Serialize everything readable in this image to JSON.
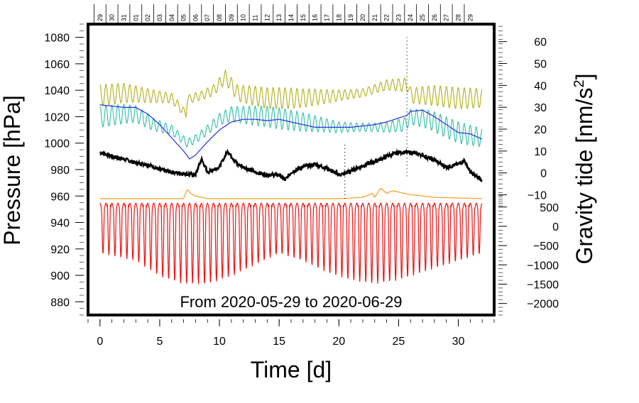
{
  "chart_data": {
    "type": "line",
    "annotation": "From 2020-05-29 to 2020-06-29",
    "xlabel": "Time [d]",
    "xlim": [
      -1,
      33
    ],
    "x_ticks": [
      "0",
      "5",
      "10",
      "15",
      "20",
      "25",
      "30"
    ],
    "left_axis": {
      "label": "Pressure [hPa]",
      "range": [
        870,
        1090
      ],
      "ticks": [
        "880",
        "900",
        "920",
        "940",
        "960",
        "980",
        "1000",
        "1020",
        "1040",
        "1060",
        "1080"
      ]
    },
    "right_axis_upper": {
      "label_main": "Gravity tide [nm/s",
      "label_sup": "2",
      "label_end": "]",
      "value_at_bottom": -15,
      "value_at_top": 68,
      "ticks": [
        "−10",
        "0",
        "10",
        "20",
        "30",
        "40",
        "50",
        "60"
      ]
    },
    "right_axis_lower": {
      "value_at_bottom": -2300,
      "value_at_top": 900,
      "ticks": [
        "−2000",
        "−1500",
        "−1000",
        "−500",
        "0",
        "500"
      ]
    },
    "top_day_labels": [
      "29",
      "30",
      "31",
      "01",
      "02",
      "03",
      "04",
      "05",
      "06",
      "07",
      "08",
      "09",
      "10",
      "11",
      "12",
      "13",
      "14",
      "15",
      "16",
      "17",
      "18",
      "19",
      "20",
      "21",
      "22",
      "23",
      "24",
      "25",
      "26",
      "27",
      "28",
      "29"
    ],
    "series": [
      {
        "name": "olive_pressure_tide",
        "color": "#b5b52a",
        "base_points": [
          [
            0,
            1036
          ],
          [
            2,
            1038
          ],
          [
            4,
            1036
          ],
          [
            6,
            1034
          ],
          [
            7.2,
            1022
          ],
          [
            7.3,
            1033
          ],
          [
            8.5,
            1036
          ],
          [
            9.5,
            1040
          ],
          [
            10.5,
            1050
          ],
          [
            11.5,
            1038
          ],
          [
            14,
            1034
          ],
          [
            17,
            1034
          ],
          [
            20,
            1036
          ],
          [
            22,
            1038
          ],
          [
            24,
            1044
          ],
          [
            25.8,
            1044
          ],
          [
            26,
            1036
          ],
          [
            28,
            1036
          ],
          [
            30,
            1034
          ],
          [
            32,
            1034
          ]
        ],
        "tide_amplitude": 8,
        "tide_period": 0.5
      },
      {
        "name": "teal_pressure_tide",
        "color": "#40c0b0",
        "base_points": [
          [
            0,
            1020
          ],
          [
            2,
            1022
          ],
          [
            3,
            1022
          ],
          [
            4.5,
            1014
          ],
          [
            6,
            1010
          ],
          [
            7.3,
            1000
          ],
          [
            8,
            1003
          ],
          [
            9,
            1010
          ],
          [
            10,
            1018
          ],
          [
            11,
            1022
          ],
          [
            14,
            1020
          ],
          [
            17,
            1016
          ],
          [
            20,
            1012
          ],
          [
            24,
            1012
          ],
          [
            25.5,
            1014
          ],
          [
            26,
            1020
          ],
          [
            27.5,
            1018
          ],
          [
            30,
            1008
          ],
          [
            32,
            1004
          ]
        ],
        "tide_amplitude": 8,
        "tide_period": 0.5
      },
      {
        "name": "blue_pressure_trend",
        "color": "#2233dd",
        "points": [
          [
            0,
            1029
          ],
          [
            1,
            1028
          ],
          [
            2,
            1027
          ],
          [
            3,
            1027
          ],
          [
            4,
            1022
          ],
          [
            5,
            1014
          ],
          [
            6,
            1004
          ],
          [
            7,
            994
          ],
          [
            7.5,
            988
          ],
          [
            8,
            991
          ],
          [
            9,
            1001
          ],
          [
            10,
            1010
          ],
          [
            11,
            1016
          ],
          [
            12,
            1018
          ],
          [
            13,
            1018
          ],
          [
            14,
            1017
          ],
          [
            15,
            1018
          ],
          [
            16,
            1016
          ],
          [
            17,
            1014
          ],
          [
            18,
            1012
          ],
          [
            19,
            1012
          ],
          [
            20,
            1012
          ],
          [
            21,
            1012
          ],
          [
            22,
            1013
          ],
          [
            23,
            1014
          ],
          [
            24,
            1016
          ],
          [
            25,
            1019
          ],
          [
            25.7,
            1021
          ],
          [
            26,
            1024
          ],
          [
            27,
            1025
          ],
          [
            28,
            1020
          ],
          [
            29,
            1014
          ],
          [
            30,
            1008
          ],
          [
            31,
            1007
          ],
          [
            32,
            1003
          ]
        ]
      },
      {
        "name": "black_gravity_residual",
        "color": "#000000",
        "points": [
          [
            0,
            993
          ],
          [
            1,
            990
          ],
          [
            2,
            988
          ],
          [
            3,
            985
          ],
          [
            4,
            984
          ],
          [
            5,
            980
          ],
          [
            6,
            978
          ],
          [
            7,
            977
          ],
          [
            8,
            976
          ],
          [
            8.5,
            988
          ],
          [
            9,
            978
          ],
          [
            10,
            982
          ],
          [
            10.7,
            994
          ],
          [
            11.5,
            984
          ],
          [
            12,
            982
          ],
          [
            13,
            978
          ],
          [
            14,
            976
          ],
          [
            15,
            976
          ],
          [
            15.5,
            972
          ],
          [
            16,
            978
          ],
          [
            17,
            982
          ],
          [
            18,
            984
          ],
          [
            19,
            981
          ],
          [
            20,
            976
          ],
          [
            20.5,
            977
          ],
          [
            21,
            979
          ],
          [
            22,
            983
          ],
          [
            23,
            986
          ],
          [
            24,
            990
          ],
          [
            25,
            993
          ],
          [
            26,
            993
          ],
          [
            27,
            991
          ],
          [
            28,
            987
          ],
          [
            29,
            982
          ],
          [
            30,
            984
          ],
          [
            30.5,
            987
          ],
          [
            31,
            978
          ],
          [
            32,
            972
          ]
        ]
      },
      {
        "name": "orange_pressure_small",
        "color": "#f0a020",
        "points": [
          [
            0,
            958
          ],
          [
            7,
            958
          ],
          [
            7.3,
            965
          ],
          [
            7.6,
            962
          ],
          [
            8,
            960
          ],
          [
            9,
            958
          ],
          [
            20,
            958
          ],
          [
            22,
            959
          ],
          [
            22.8,
            962
          ],
          [
            23,
            959
          ],
          [
            23.5,
            966
          ],
          [
            24,
            962
          ],
          [
            24.5,
            964
          ],
          [
            26,
            961
          ],
          [
            28,
            959
          ],
          [
            32,
            958
          ]
        ]
      },
      {
        "name": "red_tide_lower",
        "color": "#ee1111",
        "mean": -400,
        "envelope_min": [
          [
            0,
            -700
          ],
          [
            3,
            -900
          ],
          [
            5,
            -1300
          ],
          [
            7,
            -1500
          ],
          [
            9,
            -1500
          ],
          [
            11,
            -1300
          ],
          [
            13,
            -1000
          ],
          [
            15,
            -700
          ],
          [
            17,
            -900
          ],
          [
            19,
            -1200
          ],
          [
            21,
            -1400
          ],
          [
            23,
            -1500
          ],
          [
            25,
            -1400
          ],
          [
            27,
            -1200
          ],
          [
            29,
            -1000
          ],
          [
            31,
            -800
          ],
          [
            32,
            -700
          ]
        ],
        "max_level": 600,
        "tide_period": 0.5
      }
    ]
  }
}
